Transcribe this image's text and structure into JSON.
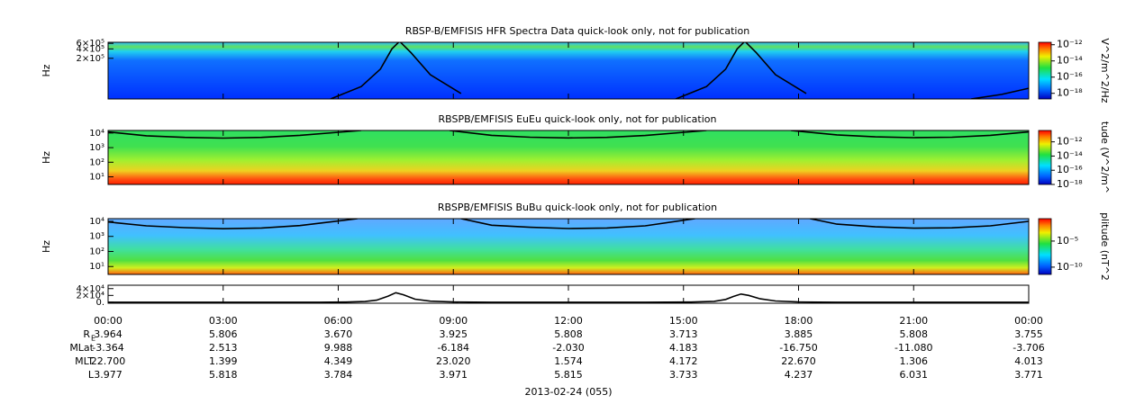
{
  "chart_data": [
    {
      "type": "spectrogram",
      "title": "RBSP-B/EMFISIS  HFR Spectra Data quick-look only, not for publication",
      "ylabel": "Hz",
      "xlim": [
        0,
        24
      ],
      "xticks": [
        0,
        3,
        6,
        9,
        12,
        15,
        18,
        21,
        24
      ],
      "ylim": [
        10000,
        650000
      ],
      "ylog": true,
      "yticks": [
        {
          "value": 600000,
          "label": "6×10⁵"
        },
        {
          "value": 400000,
          "label": "4×10⁵"
        },
        {
          "value": 200000,
          "label": "2×10⁵"
        }
      ],
      "colorbar": {
        "label": "V^2/m^2/Hz",
        "clim": [
          2e-19,
          2e-12
        ],
        "log": true,
        "ticks": [
          {
            "value": 1e-12,
            "label": "10⁻¹²"
          },
          {
            "value": 1e-14,
            "label": "10⁻¹⁴"
          },
          {
            "value": 1e-16,
            "label": "10⁻¹⁶"
          },
          {
            "value": 1e-18,
            "label": "10⁻¹⁸"
          }
        ]
      },
      "overlay": {
        "color": "#000000",
        "x": [
          5.8,
          6.6,
          7.1,
          7.4,
          7.6,
          7.9,
          8.4,
          9.2,
          null,
          14.8,
          15.6,
          16.1,
          16.4,
          16.6,
          16.9,
          17.4,
          18.2,
          null,
          22.5,
          23.3,
          24
        ],
        "values": [
          10000,
          25000,
          90000,
          400000,
          700000,
          300000,
          60000,
          15000,
          null,
          10000,
          25000,
          90000,
          400000,
          700000,
          300000,
          60000,
          15000,
          null,
          10000,
          14000,
          22000
        ]
      }
    },
    {
      "type": "spectrogram",
      "title": "RBSPB/EMFISIS  EuEu quick-look only, not for publication",
      "ylabel": "Hz",
      "xlim": [
        0,
        24
      ],
      "xticks": [
        0,
        3,
        6,
        9,
        12,
        15,
        18,
        21,
        24
      ],
      "ylim": [
        3,
        15000
      ],
      "ylog": true,
      "yticks": [
        {
          "value": 10000,
          "label": "10⁴"
        },
        {
          "value": 1000,
          "label": "10³"
        },
        {
          "value": 100,
          "label": "10²"
        },
        {
          "value": 10,
          "label": "10¹"
        }
      ],
      "colorbar": {
        "label": "tude (V^2/m^",
        "clim": [
          1e-18,
          4e-11
        ],
        "log": true,
        "ticks": [
          {
            "value": 1e-12,
            "label": "10⁻¹²"
          },
          {
            "value": 1e-14,
            "label": "10⁻¹⁴"
          },
          {
            "value": 1e-16,
            "label": "10⁻¹⁶"
          },
          {
            "value": 1e-18,
            "label": "10⁻¹⁸"
          }
        ]
      },
      "overlay": {
        "color": "#000000",
        "x": [
          0,
          1,
          2,
          3,
          4,
          5,
          6.6,
          null,
          8.9,
          10,
          11,
          12,
          13,
          14,
          15.6,
          null,
          17.8,
          19,
          20,
          21,
          22,
          23,
          24
        ],
        "values": [
          12000,
          6500,
          5000,
          4500,
          5000,
          7000,
          15000,
          null,
          15000,
          7000,
          5200,
          4600,
          5000,
          6800,
          15000,
          null,
          15000,
          7500,
          5500,
          4800,
          5200,
          7000,
          12000
        ]
      }
    },
    {
      "type": "spectrogram",
      "title": "RBSPB/EMFISIS  BuBu quick-look only, not for publication",
      "ylabel": "Hz",
      "xlim": [
        0,
        24
      ],
      "xticks": [
        0,
        3,
        6,
        9,
        12,
        15,
        18,
        21,
        24
      ],
      "ylim": [
        3,
        15000
      ],
      "ylog": true,
      "yticks": [
        {
          "value": 10000,
          "label": "10⁴"
        },
        {
          "value": 1000,
          "label": "10³"
        },
        {
          "value": 100,
          "label": "10²"
        },
        {
          "value": 10,
          "label": "10¹"
        }
      ],
      "colorbar": {
        "label": "plitude (nT^2",
        "clim": [
          4e-12,
          0.2
        ],
        "log": true,
        "ticks": [
          {
            "value": 1e-05,
            "label": "10⁻⁵"
          },
          {
            "value": 1e-10,
            "label": "10⁻¹⁰"
          }
        ]
      },
      "overlay": {
        "color": "#000000",
        "x": [
          0,
          1,
          2,
          3,
          4,
          5,
          6.5,
          null,
          9.2,
          10,
          11,
          12,
          13,
          14,
          15.3,
          null,
          18.3,
          19,
          20,
          21,
          22,
          23,
          24
        ],
        "values": [
          9000,
          5000,
          3800,
          3200,
          3600,
          5200,
          15000,
          null,
          15000,
          5500,
          4000,
          3300,
          3600,
          5000,
          15000,
          null,
          15000,
          6500,
          4300,
          3500,
          3700,
          5000,
          10000
        ]
      }
    },
    {
      "type": "line",
      "xlim": [
        0,
        24
      ],
      "xticks": [
        {
          "value": 0,
          "label": "00:00"
        },
        {
          "value": 3,
          "label": "03:00"
        },
        {
          "value": 6,
          "label": "06:00"
        },
        {
          "value": 9,
          "label": "09:00"
        },
        {
          "value": 12,
          "label": "12:00"
        },
        {
          "value": 15,
          "label": "15:00"
        },
        {
          "value": 18,
          "label": "18:00"
        },
        {
          "value": 21,
          "label": "21:00"
        },
        {
          "value": 24,
          "label": "00:00"
        }
      ],
      "ylim": [
        -3000,
        50000
      ],
      "yticks": [
        {
          "value": 40000,
          "label": "4×10⁴"
        },
        {
          "value": 20000,
          "label": "2×10⁴"
        },
        {
          "value": 0,
          "label": "0."
        }
      ],
      "color": "#000000",
      "x": [
        0,
        2,
        4,
        5.5,
        6.2,
        6.7,
        7.0,
        7.3,
        7.5,
        7.7,
        8.0,
        8.4,
        9.0,
        10,
        12,
        14,
        15.2,
        15.8,
        16.1,
        16.3,
        16.5,
        16.7,
        17.0,
        17.4,
        18.0,
        19,
        21,
        24
      ],
      "values": [
        0,
        0,
        0,
        0,
        500,
        2000,
        6000,
        18000,
        28000,
        22000,
        9000,
        3000,
        800,
        0,
        0,
        0,
        500,
        2500,
        8000,
        17000,
        24000,
        20000,
        10000,
        3500,
        800,
        0,
        0,
        0
      ]
    }
  ],
  "ephemeris": {
    "rows": [
      {
        "label": "R",
        "sub": "E",
        "values": [
          "3.964",
          "5.806",
          "3.670",
          "3.925",
          "5.808",
          "3.713",
          "3.885",
          "5.808",
          "3.755"
        ]
      },
      {
        "label": "MLat",
        "values": [
          "-3.364",
          "2.513",
          "9.988",
          "-6.184",
          "-2.030",
          "4.183",
          "-16.750",
          "-11.080",
          "-3.706"
        ]
      },
      {
        "label": "MLT",
        "values": [
          "22.700",
          "1.399",
          "4.349",
          "23.020",
          "1.574",
          "4.172",
          "22.670",
          "1.306",
          "4.013"
        ]
      },
      {
        "label": "L",
        "values": [
          "3.977",
          "5.818",
          "3.784",
          "3.971",
          "5.815",
          "3.733",
          "4.237",
          "6.031",
          "3.771"
        ]
      }
    ],
    "date": "2013-02-24 (055)"
  }
}
